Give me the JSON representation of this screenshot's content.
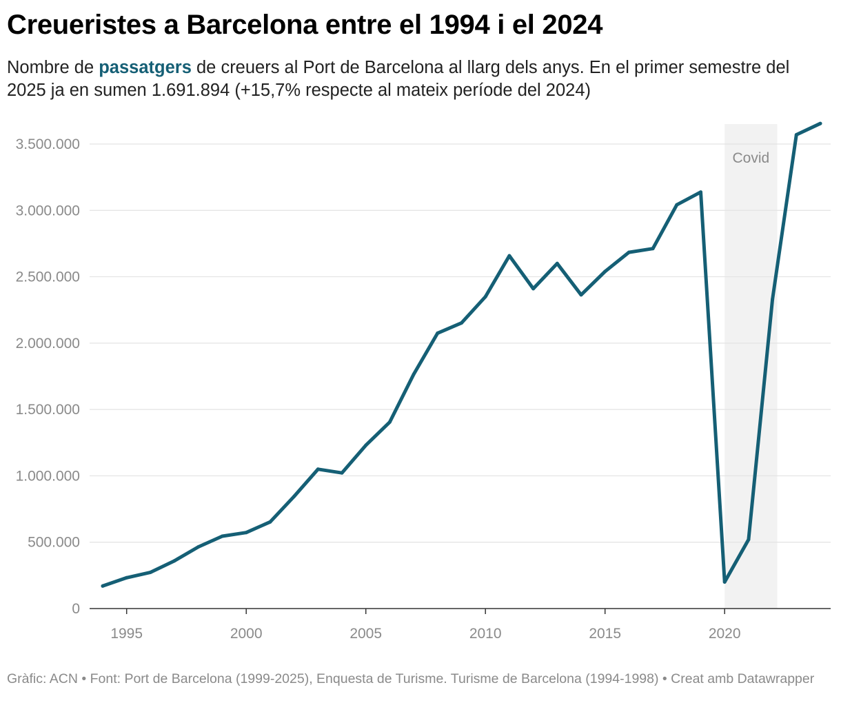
{
  "header": {
    "title": "Creueristes a Barcelona entre el 1994 i el 2024",
    "subtitle_pre": "Nombre de ",
    "subtitle_highlight": "passatgers",
    "subtitle_post": " de creuers al Port de Barcelona al llarg dels anys. En el primer semestre del 2025 ja en sumen 1.691.894 (+15,7% respecte al mateix període del 2024)"
  },
  "footer": {
    "text": "Gràfic: ACN • Font: Port de Barcelona (1999-2025), Enquesta de Turisme. Turisme de Barcelona (1994-1998) • Creat amb Datawrapper"
  },
  "chart_data": {
    "type": "line",
    "title": "Creueristes a Barcelona entre el 1994 i el 2024",
    "xlabel": "",
    "ylabel": "",
    "line_color": "#155f75",
    "x": [
      1994,
      1995,
      1996,
      1997,
      1998,
      1999,
      2000,
      2001,
      2002,
      2003,
      2004,
      2005,
      2006,
      2007,
      2008,
      2009,
      2010,
      2011,
      2012,
      2013,
      2014,
      2015,
      2016,
      2017,
      2018,
      2019,
      2020,
      2021,
      2022,
      2023,
      2024
    ],
    "series": [
      {
        "name": "passatgers",
        "values": [
          170000,
          232000,
          273000,
          360000,
          465000,
          545000,
          573000,
          653000,
          845000,
          1050000,
          1022000,
          1230000,
          1405000,
          1765000,
          2075000,
          2152000,
          2350000,
          2658000,
          2410000,
          2600000,
          2364000,
          2540000,
          2684000,
          2712000,
          3042000,
          3138000,
          200000,
          520000,
          2330000,
          3570000,
          3655000
        ]
      }
    ],
    "xlim": [
      1993.6,
      2024.4
    ],
    "ylim": [
      0,
      3650000
    ],
    "y_ticks": [
      0,
      500000,
      1000000,
      1500000,
      2000000,
      2500000,
      3000000,
      3500000
    ],
    "y_tick_labels": [
      "0",
      "500.000",
      "1.000.000",
      "1.500.000",
      "2.000.000",
      "2.500.000",
      "3.000.000",
      "3.500.000"
    ],
    "x_ticks": [
      1995,
      2000,
      2005,
      2010,
      2015,
      2020
    ],
    "x_tick_labels": [
      "1995",
      "2000",
      "2005",
      "2010",
      "2015",
      "2020"
    ],
    "gridlines": true,
    "annotations": [
      {
        "label": "Covid",
        "x_start": 2020,
        "x_end": 2022.2
      }
    ]
  }
}
